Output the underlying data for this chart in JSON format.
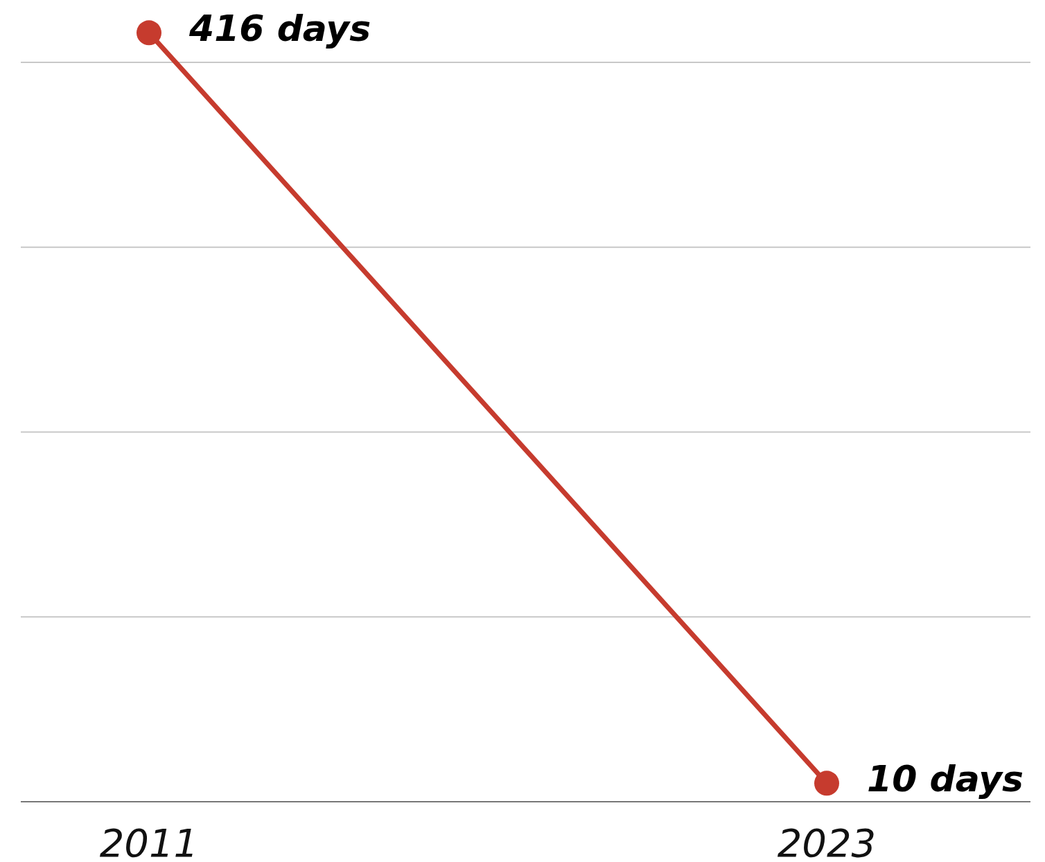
{
  "chart_data": {
    "type": "line",
    "categories": [
      "2011",
      "2023"
    ],
    "series": [
      {
        "color": "#c63b2e",
        "values": [
          416,
          10
        ],
        "value_labels": [
          "416 days",
          "10 days"
        ]
      }
    ],
    "yticks": [
      {
        "value": 0,
        "label": null
      },
      {
        "value": 100,
        "label": null
      },
      {
        "value": 200,
        "label": null
      },
      {
        "value": 300,
        "label": null
      },
      {
        "value": 400,
        "label": null
      }
    ],
    "grid": "y",
    "tick_labels": "x",
    "marker": "circle",
    "line_style": "solid"
  }
}
